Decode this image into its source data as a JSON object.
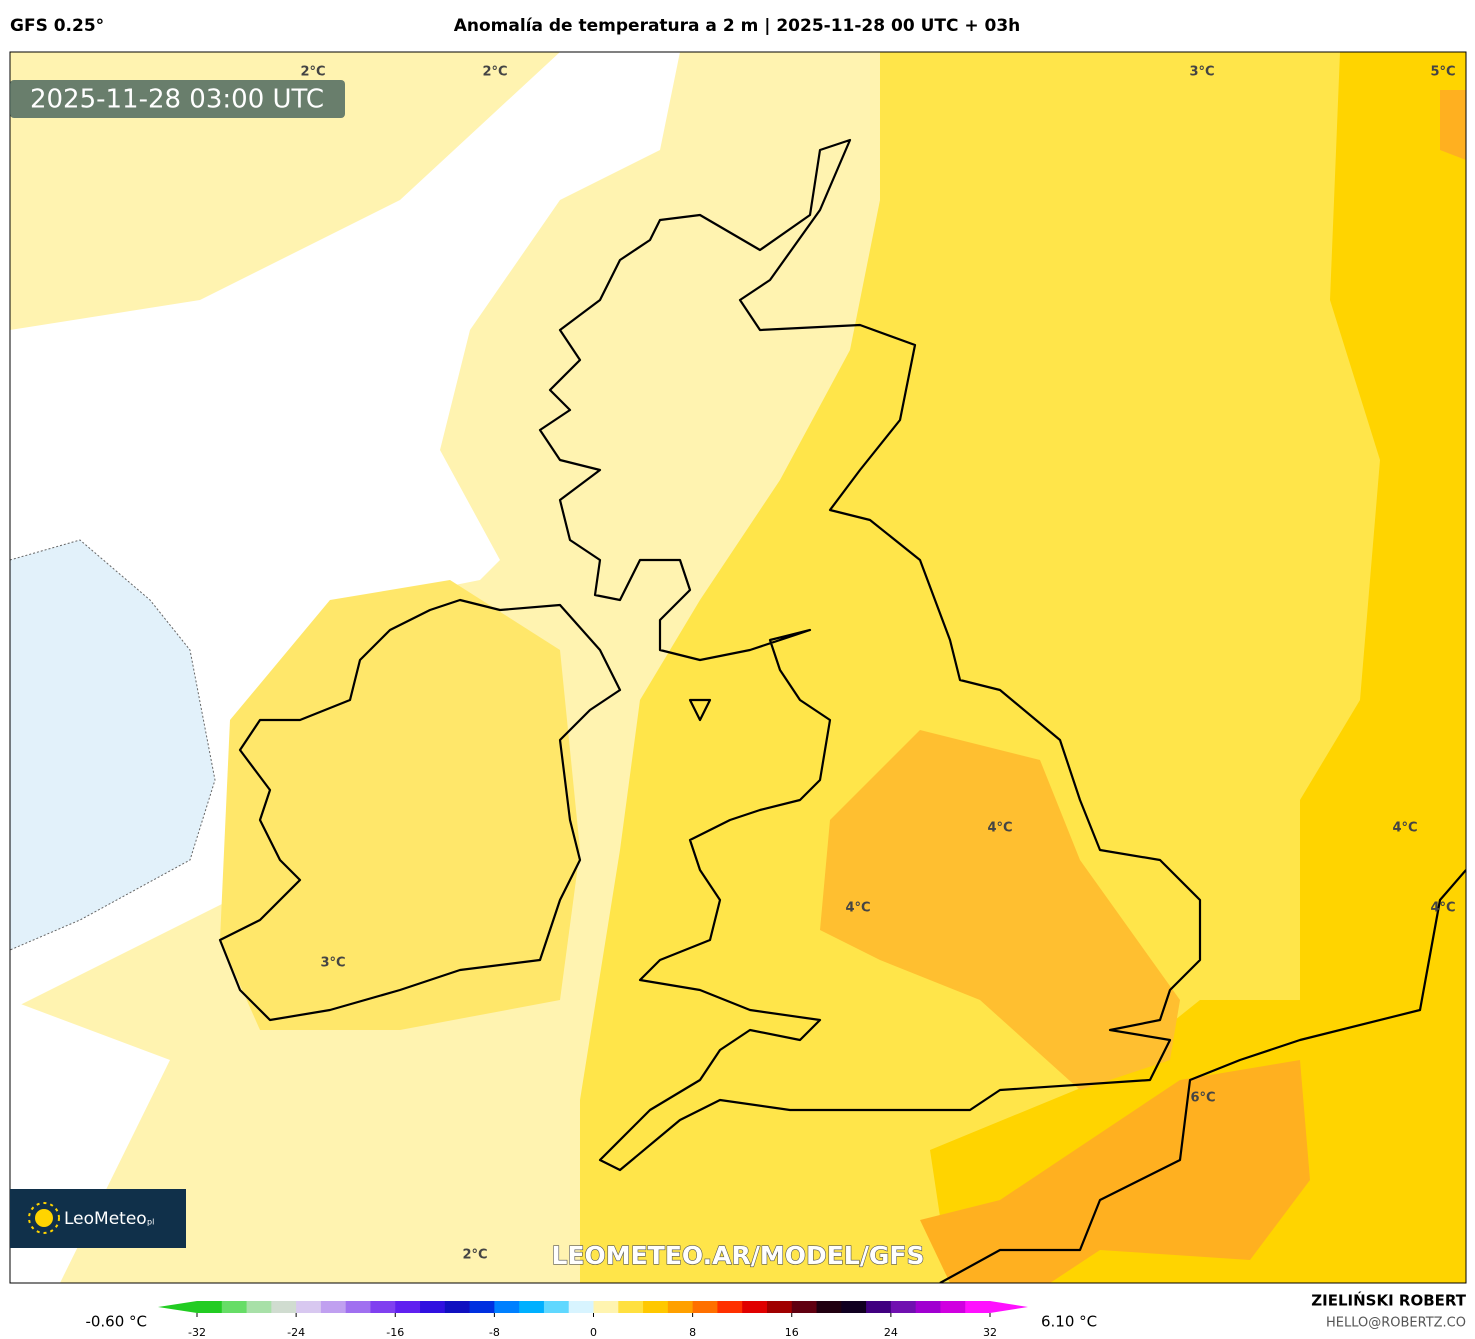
{
  "header": {
    "model": "GFS 0.25°",
    "title": "Anomalía de temperatura a 2 m | 2025-11-28 00 UTC + 03h"
  },
  "map": {
    "timestamp": "2025-11-28 03:00 UTC",
    "contour_labels": [
      "2°C",
      "2°C",
      "3°C",
      "5°C",
      "4°C",
      "4°C",
      "4°C",
      "4°C",
      "3°C",
      "6°C",
      "2°C"
    ],
    "logo": "LeoMeteo",
    "logo_suffix": "pl",
    "watermark": "LEOMETEO.AR/MODEL/GFS"
  },
  "colorbar": {
    "range": [
      -32,
      32
    ],
    "ticks": [
      -32,
      -24,
      -16,
      -8,
      0,
      8,
      16,
      24,
      32
    ],
    "colors": [
      "#22cc22",
      "#66dd66",
      "#a8e0a8",
      "#d0dcd0",
      "#d8c8f0",
      "#c0a0f0",
      "#a070f0",
      "#8040f0",
      "#6020f0",
      "#3010e0",
      "#1010c0",
      "#0030e0",
      "#0080ff",
      "#00b0ff",
      "#60d8ff",
      "#d8f4ff",
      "#fff4b0",
      "#ffe040",
      "#ffc800",
      "#ffa000",
      "#ff7000",
      "#ff3000",
      "#e00000",
      "#a00000",
      "#600010",
      "#200010",
      "#100020",
      "#400080",
      "#7010b0",
      "#a000d0",
      "#d000e0",
      "#ff10ff"
    ],
    "min_label": "-0.60 °C",
    "max_label": "6.10 °C"
  },
  "credits": {
    "author": "ZIELIŃSKI ROBERT",
    "contact": "HELLO@ROBERTZ.CO"
  }
}
